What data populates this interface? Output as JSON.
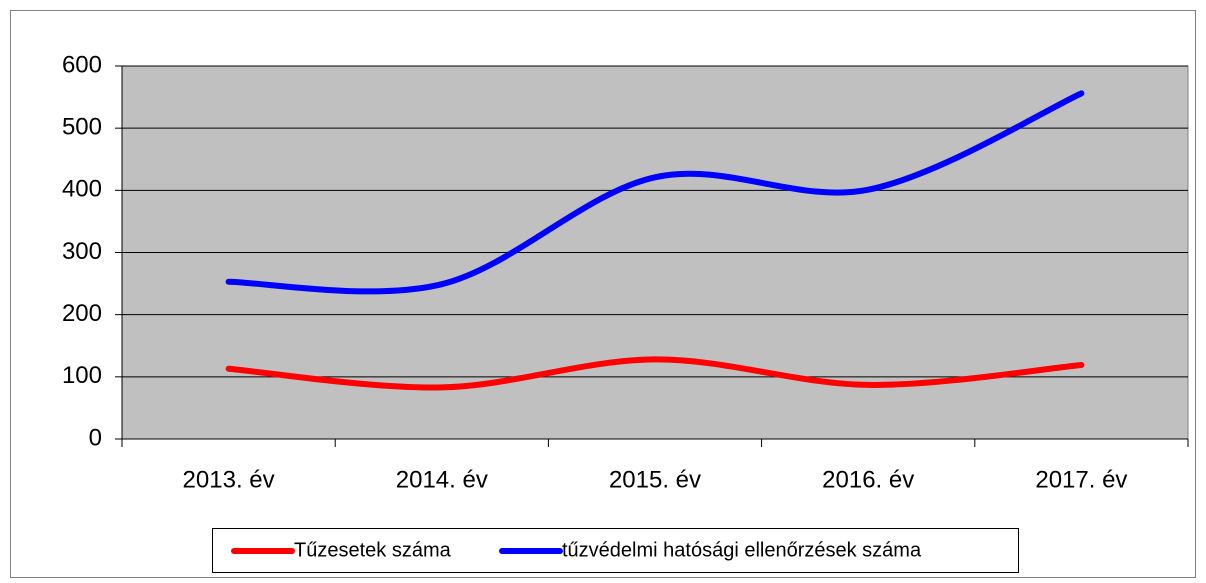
{
  "chart_data": {
    "type": "line",
    "categories": [
      "2013. év",
      "2014. év",
      "2015. év",
      "2016. év",
      "2017. év"
    ],
    "series": [
      {
        "name": "Tűzesetek száma",
        "color": "#ff0000",
        "values": [
          113,
          83,
          128,
          87,
          119
        ]
      },
      {
        "name": "tűzvédelmi hatósági ellenőrzések száma",
        "color": "#0000ff",
        "values": [
          253,
          249,
          421,
          401,
          556
        ]
      }
    ],
    "ylim": [
      0,
      600
    ],
    "yticks": [
      0,
      100,
      200,
      300,
      400,
      500,
      600
    ],
    "grid": true,
    "smooth": true,
    "legend": "bottom"
  }
}
